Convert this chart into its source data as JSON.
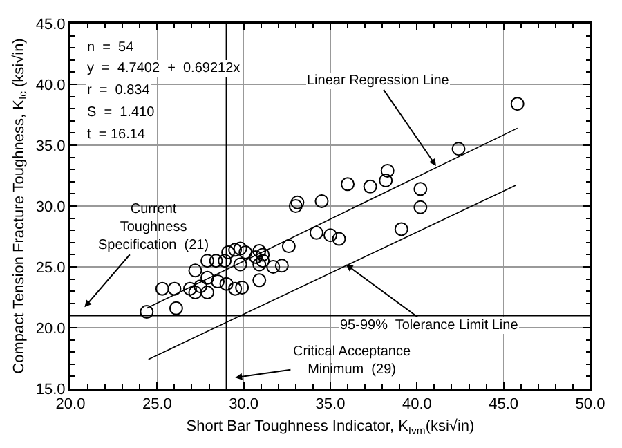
{
  "chart_data": {
    "type": "scatter",
    "xlabel": "Short Bar Toughness Indicator, K$_{Ivm}$(ksi√in)",
    "ylabel": "Compact Tension Fracture Toughness, K$_{Ic}$ (ksi√in)",
    "xlim": [
      20,
      50
    ],
    "ylim": [
      15,
      45
    ],
    "xticks": [
      {
        "value": 20,
        "label": "20.0"
      },
      {
        "value": 25,
        "label": "25.0"
      },
      {
        "value": 30,
        "label": "30.0"
      },
      {
        "value": 35,
        "label": "35.0"
      },
      {
        "value": 40,
        "label": "40.0"
      },
      {
        "value": 45,
        "label": "45.0"
      },
      {
        "value": 50,
        "label": "50.0"
      }
    ],
    "yticks": [
      {
        "value": 15,
        "label": "15.0"
      },
      {
        "value": 20,
        "label": "20.0"
      },
      {
        "value": 25,
        "label": "25.0"
      },
      {
        "value": 30,
        "label": "30.0"
      },
      {
        "value": 35,
        "label": "35.0"
      },
      {
        "value": 40,
        "label": "40.0"
      },
      {
        "value": 45,
        "label": "45.0"
      }
    ],
    "grid": true,
    "marker": "circle",
    "series": [
      {
        "color": "#000000",
        "x": [
          24.4,
          25.3,
          26.0,
          26.1,
          26.9,
          27.2,
          27.2,
          27.5,
          27.9,
          27.9,
          27.9,
          28.4,
          28.5,
          28.9,
          29.0,
          29.1,
          29.5,
          29.8,
          30.1,
          29.5,
          29.9,
          29.8,
          30.9,
          31.1,
          30.7,
          30.9,
          30.9,
          31.1,
          31.7,
          32.2,
          32.6,
          33.0,
          33.1,
          34.2,
          34.5,
          35.0,
          35.5,
          36.0,
          37.3,
          38.2,
          38.3,
          39.1,
          40.2,
          40.2,
          42.4,
          45.8
        ],
        "values": [
          21.3,
          23.2,
          23.2,
          21.6,
          23.2,
          24.7,
          22.9,
          23.4,
          25.5,
          24.1,
          22.9,
          25.5,
          23.8,
          25.5,
          23.6,
          26.2,
          26.4,
          26.5,
          26.2,
          23.2,
          23.3,
          25.2,
          26.3,
          26.0,
          25.8,
          25.2,
          23.9,
          25.5,
          25.0,
          25.1,
          26.7,
          30.0,
          30.3,
          27.8,
          30.4,
          27.6,
          27.3,
          31.8,
          31.6,
          32.1,
          32.9,
          28.1,
          31.4,
          29.9,
          34.7,
          38.4
        ]
      },
      {
        "type": "line",
        "marker": "none",
        "color": "#000000",
        "x": [
          24.4,
          45.8
        ],
        "values": [
          21.6,
          36.4
        ]
      },
      {
        "type": "line",
        "marker": "none",
        "color": "#000000",
        "x": [
          24.5,
          45.7
        ],
        "values": [
          17.4,
          31.7
        ]
      }
    ],
    "ref_lines": [
      {
        "axis": "y",
        "value": 21,
        "color": "#000000"
      },
      {
        "axis": "x",
        "value": 29,
        "color": "#000000"
      }
    ],
    "annotations": [
      "n  =  54",
      "y  =  4.7402  +  0.69212x",
      "r  =  0.834",
      "S  =  1.410",
      "t  = 16.14",
      {
        "text": "Linear Regression Line",
        "x": 41.1,
        "y": 33.3
      },
      {
        "text": "95-99%  Tolerance Limit Line",
        "x": 35.9,
        "y": 25.2
      },
      "Current\nToughness\nSpecification  (21)",
      "Critical Acceptance\nMinimum  (29)"
    ]
  }
}
